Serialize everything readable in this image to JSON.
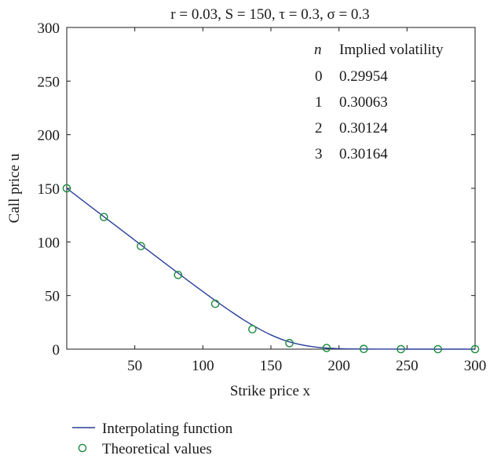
{
  "chart_data": {
    "type": "line",
    "title": "r = 0.03, S = 150, τ = 0.3, σ = 0.3",
    "xlabel": "Strike price x",
    "ylabel": "Call price u",
    "xlim": [
      0,
      300
    ],
    "ylim": [
      0,
      300
    ],
    "xticks": [
      50,
      100,
      150,
      200,
      250,
      300
    ],
    "yticks": [
      0,
      50,
      100,
      150,
      200,
      250,
      300
    ],
    "grid": false,
    "legend_position": "bottom-left, below plot",
    "series": [
      {
        "name": "Interpolating function",
        "style": "line",
        "color": "#2a3f9a",
        "x": [
          0,
          10,
          20,
          30,
          40,
          50,
          60,
          70,
          80,
          90,
          100,
          110,
          120,
          130,
          140,
          150,
          160,
          170,
          180,
          190,
          200,
          210,
          220,
          230,
          240,
          250,
          260,
          270,
          280,
          290,
          300
        ],
        "values": [
          150,
          140.3,
          130.6,
          120.9,
          111.3,
          101.6,
          91.9,
          82.3,
          72.7,
          63.1,
          53.7,
          44.5,
          35.7,
          27.3,
          19.8,
          13.3,
          8.2,
          4.7,
          2.4,
          1.1,
          0.5,
          0.2,
          0.1,
          0.03,
          0.01,
          0,
          0,
          0,
          0,
          0,
          0
        ]
      },
      {
        "name": "Theoretical values",
        "style": "marker",
        "color": "#1a8a3a",
        "x": [
          0,
          27.3,
          54.5,
          81.8,
          109.1,
          136.4,
          163.6,
          190.9,
          218.2,
          245.5,
          272.7,
          300
        ],
        "values": [
          150,
          123.2,
          96.1,
          69.2,
          42.3,
          18.6,
          5.6,
          1.1,
          0.2,
          0,
          0,
          0
        ]
      }
    ],
    "annotation_table": {
      "header": [
        "n",
        "Implied volatility"
      ],
      "rows": [
        [
          "0",
          "0.29954"
        ],
        [
          "1",
          "0.30063"
        ],
        [
          "2",
          "0.30124"
        ],
        [
          "3",
          "0.30164"
        ]
      ]
    }
  }
}
